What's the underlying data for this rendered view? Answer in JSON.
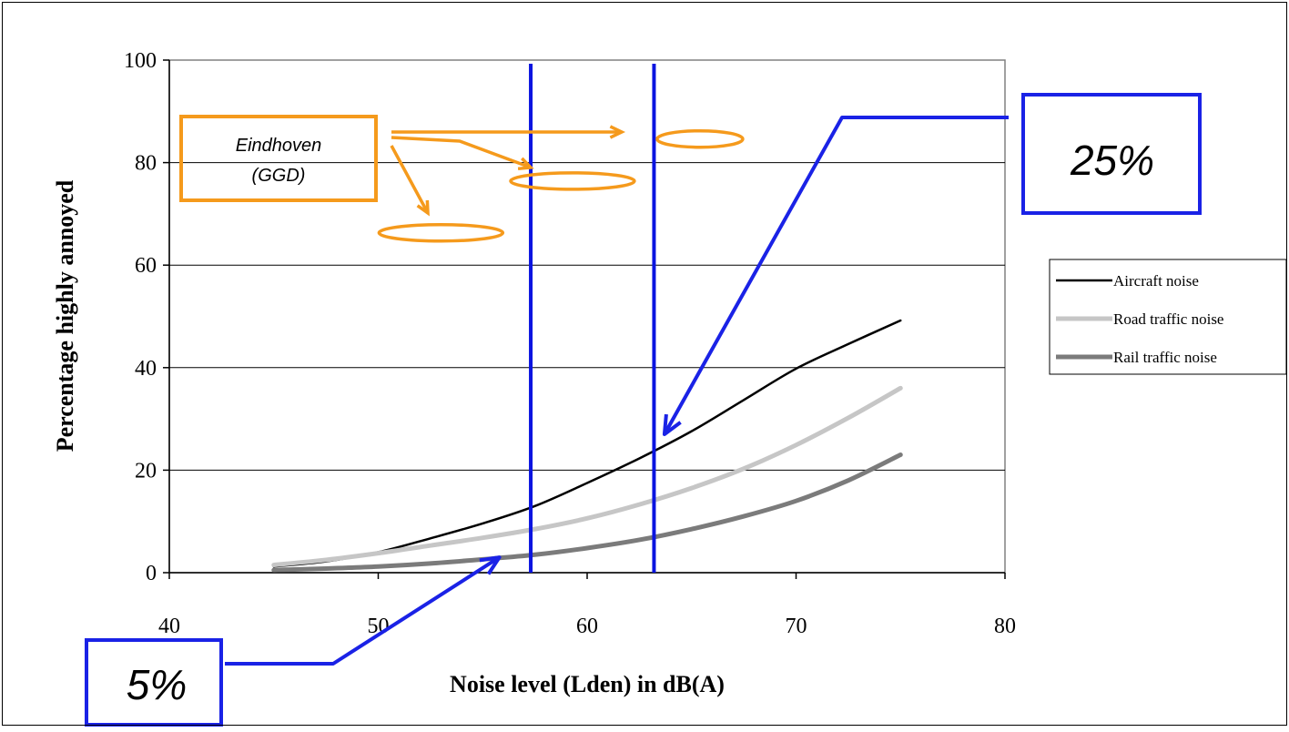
{
  "chart_data": {
    "type": "line",
    "xlabel": "Noise level (Lden) in dB(A)",
    "ylabel": "Percentage highly annoyed",
    "xlim": [
      40,
      80
    ],
    "ylim": [
      0,
      100
    ],
    "x_ticks": [
      "40",
      "50",
      "60",
      "70",
      "80"
    ],
    "y_ticks": [
      "0",
      "20",
      "40",
      "60",
      "80",
      "100"
    ],
    "grid": "horizontal",
    "legend_position": "right",
    "series": [
      {
        "name": "Aircraft noise",
        "color": "#000000",
        "x": [
          45,
          47.5,
          50,
          52.5,
          55,
          57.5,
          60,
          62.5,
          65,
          67.5,
          70,
          72.5,
          75
        ],
        "y": [
          1.2,
          2.2,
          4.0,
          6.7,
          9.6,
          13.0,
          17.5,
          22.3,
          27.6,
          33.7,
          39.8,
          44.6,
          49.2
        ]
      },
      {
        "name": "Road traffic noise",
        "color": "#c6c6c6",
        "x": [
          45,
          47.5,
          50,
          52.5,
          55,
          57.5,
          60,
          62.5,
          65,
          67.5,
          70,
          72.5,
          75
        ],
        "y": [
          1.5,
          2.5,
          3.8,
          5.3,
          6.8,
          8.5,
          10.6,
          13.3,
          16.5,
          20.3,
          24.9,
          30.2,
          36.0
        ]
      },
      {
        "name": "Rail traffic noise",
        "color": "#7b7b7b",
        "x": [
          45,
          47.5,
          50,
          52.5,
          55,
          57.5,
          60,
          62.5,
          65,
          67.5,
          70,
          72.5,
          75
        ],
        "y": [
          0.5,
          0.8,
          1.2,
          1.8,
          2.6,
          3.5,
          4.8,
          6.4,
          8.5,
          11.0,
          14.0,
          18.0,
          23.0
        ]
      }
    ],
    "vertical_markers": [
      {
        "x": 57.3,
        "color": "#0a14e0"
      },
      {
        "x": 63.2,
        "color": "#0a14e0"
      }
    ],
    "annotations": [
      {
        "text": "25%",
        "color": "#1a22e6",
        "arrow_target": {
          "x": 63.7,
          "y": 27
        }
      },
      {
        "text": "5%",
        "color": "#1a22e6",
        "arrow_target": {
          "x": 55.8,
          "y": 3
        }
      },
      {
        "text": "Eindhoven\n(GGD)",
        "color": "#f59a1c",
        "highlight_regions": [
          {
            "cx": 65.4,
            "cy": 84.6
          },
          {
            "cx": 59.3,
            "cy": 76.4
          },
          {
            "cx": 53.0,
            "cy": 66.3
          }
        ]
      }
    ]
  },
  "annotation_box_orange": {
    "line1": "Eindhoven",
    "line2": "(GGD)"
  },
  "annotation_box_25": "25%",
  "annotation_box_5": "5%"
}
